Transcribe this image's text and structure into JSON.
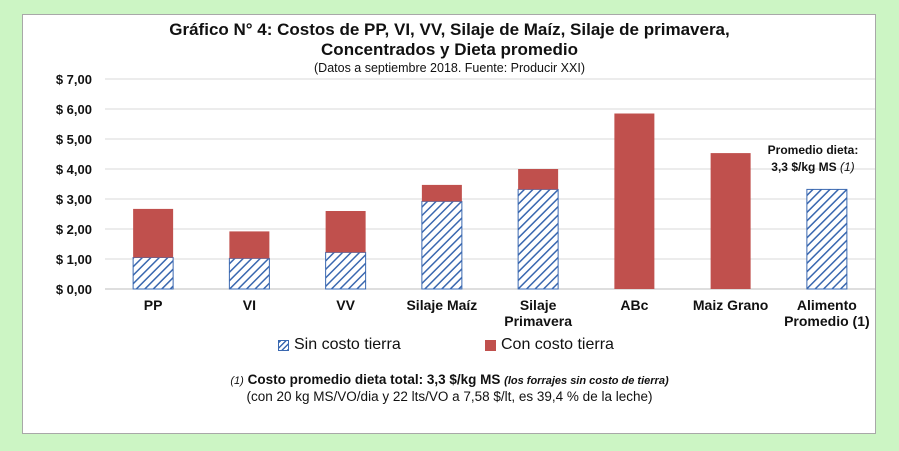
{
  "chart_data": {
    "type": "bar",
    "stacked": true,
    "title_line1": "Gráfico N° 4: Costos de PP, VI, VV, Silaje de Maíz, Silaje de primavera,",
    "title_line2": "Concentrados y Dieta promedio",
    "subtitle": "(Datos a septiembre 2018. Fuente: Producir XXI)",
    "categories": [
      [
        "PP"
      ],
      [
        "VI"
      ],
      [
        "VV"
      ],
      [
        "Silaje Maíz"
      ],
      [
        "Silaje",
        "Primavera"
      ],
      [
        "ABc"
      ],
      [
        "Maiz Grano"
      ],
      [
        "Alimento",
        "Promedio (1)"
      ]
    ],
    "series": [
      {
        "name": "Sin costo tierra",
        "color": "#3a68b0",
        "pattern": "hatch",
        "values": [
          1.05,
          1.02,
          1.22,
          2.92,
          3.32,
          0,
          0,
          3.32
        ]
      },
      {
        "name": "Con costo tierra",
        "color": "#c0504d",
        "values": [
          1.62,
          0.9,
          1.38,
          0.55,
          0.68,
          5.85,
          4.53,
          0
        ]
      }
    ],
    "yticks": [
      "$ 0,00",
      "$ 1,00",
      "$ 2,00",
      "$ 3,00",
      "$ 4,00",
      "$ 5,00",
      "$ 6,00",
      "$ 7,00"
    ],
    "ylim": [
      0,
      7
    ],
    "grid": true,
    "legend_position": "bottom",
    "annotation": {
      "line1": "Promedio dieta:",
      "line2": "3,3 $/kg MS",
      "ref": "(1)"
    },
    "footnote": {
      "ref": "(1)",
      "main": "Costo promedio dieta total: 3,3 $/kg MS",
      "italic": "(los forrajes sin costo de tierra)",
      "line2": "(con 20 kg MS/VO/dia y 22 lts/VO a 7,58 $/lt, es 39,4 % de la leche)"
    }
  }
}
